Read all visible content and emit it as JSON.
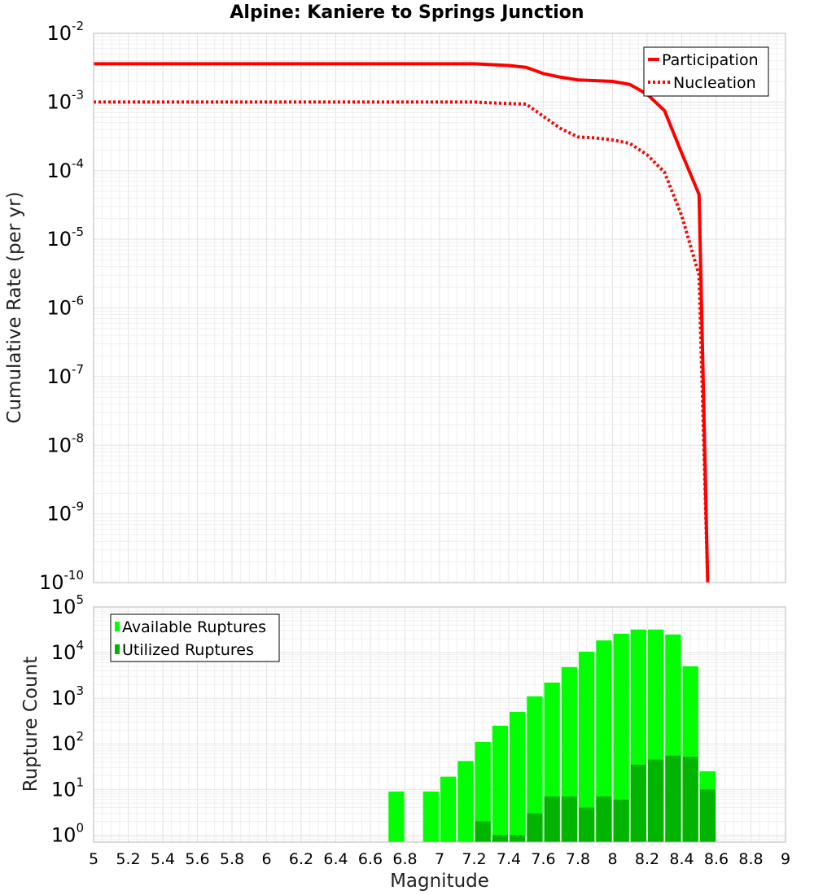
{
  "chart_data": [
    {
      "type": "line",
      "title": "Alpine: Kaniere to Springs Junction",
      "xlabel": "Magnitude",
      "ylabel": "Cumulative Rate (per yr)",
      "xlim": [
        5,
        9
      ],
      "ylim": [
        1e-10,
        0.01
      ],
      "yscale": "log",
      "grid": true,
      "legend_position": "top-right",
      "series": [
        {
          "name": "Participation",
          "style": "solid",
          "color": "#ff0000",
          "x": [
            5.0,
            7.2,
            7.4,
            7.5,
            7.6,
            7.7,
            7.8,
            7.9,
            8.0,
            8.1,
            8.2,
            8.3,
            8.4,
            8.5,
            8.55
          ],
          "y": [
            0.0036,
            0.0036,
            0.0034,
            0.0032,
            0.0026,
            0.0023,
            0.0021,
            0.00205,
            0.002,
            0.0018,
            0.0013,
            0.00075,
            0.00018,
            4.5e-05,
            1e-10
          ]
        },
        {
          "name": "Nucleation",
          "style": "dotted",
          "color": "#ff0000",
          "x": [
            5.0,
            7.2,
            7.4,
            7.5,
            7.6,
            7.7,
            7.8,
            7.9,
            8.0,
            8.1,
            8.2,
            8.3,
            8.4,
            8.5,
            8.55
          ],
          "y": [
            0.001,
            0.001,
            0.00095,
            0.00093,
            0.00062,
            0.00041,
            0.00031,
            0.0003,
            0.00028,
            0.00025,
            0.00017,
            9.5e-05,
            2.2e-05,
            3e-06,
            1e-10
          ]
        }
      ]
    },
    {
      "type": "bar",
      "xlabel": "Magnitude",
      "ylabel": "Rupture Count",
      "xlim": [
        5,
        9
      ],
      "ylim": [
        0.7,
        100000
      ],
      "yscale": "log",
      "grid": true,
      "legend_position": "top-left",
      "bin_width": 0.1,
      "x": [
        6.7,
        6.9,
        7.0,
        7.1,
        7.2,
        7.3,
        7.4,
        7.5,
        7.6,
        7.7,
        7.8,
        7.9,
        8.0,
        8.1,
        8.2,
        8.3,
        8.4,
        8.5
      ],
      "series": [
        {
          "name": "Available Ruptures",
          "color": "#00ff00",
          "values": [
            9,
            9,
            19,
            42,
            110,
            250,
            500,
            1100,
            2200,
            4800,
            10500,
            18500,
            26000,
            32000,
            32000,
            25000,
            5000,
            25
          ]
        },
        {
          "name": "Utilized Ruptures",
          "color": "#00b400",
          "values": [
            0,
            0,
            0,
            0,
            2,
            1,
            1,
            3,
            7,
            7,
            4,
            7,
            6,
            35,
            45,
            55,
            52,
            10
          ]
        }
      ]
    }
  ],
  "x_tick_labels": [
    "5",
    "5.2",
    "5.4",
    "5.6",
    "5.8",
    "6",
    "6.2",
    "6.4",
    "6.6",
    "6.8",
    "7",
    "7.2",
    "7.4",
    "7.6",
    "7.8",
    "8",
    "8.2",
    "8.4",
    "8.6",
    "8.8",
    "9"
  ],
  "top_y_tick_exponents": [
    "-2",
    "-3",
    "-4",
    "-5",
    "-6",
    "-7",
    "-8",
    "-9",
    "-10"
  ],
  "bottom_y_tick_exponents": [
    "5",
    "4",
    "3",
    "2",
    "1",
    "0"
  ],
  "y_tick_base": "10"
}
